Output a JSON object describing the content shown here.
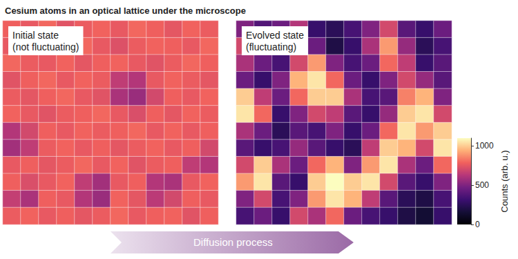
{
  "title": "Cesium atoms in an optical lattice under the microscope",
  "arrow_label": "Diffusion process",
  "colorbar": {
    "label": "Counts (arb. u.)",
    "range": [
      0,
      1100
    ],
    "ticks": [
      0,
      500,
      1000
    ]
  },
  "chart_data": [
    {
      "type": "heatmap",
      "annotation": "Initial state\n(not fluctuating)",
      "grid": true,
      "tick_labels": false,
      "cells": [
        [
          780,
          760,
          800,
          740,
          770,
          790,
          760,
          800,
          780,
          750,
          790,
          770
        ],
        [
          760,
          790,
          740,
          780,
          800,
          760,
          730,
          770,
          790,
          780,
          760,
          800
        ],
        [
          800,
          770,
          760,
          790,
          750,
          780,
          790,
          760,
          740,
          770,
          800,
          780
        ],
        [
          740,
          780,
          800,
          760,
          790,
          770,
          650,
          620,
          760,
          790,
          770,
          750
        ],
        [
          770,
          750,
          780,
          800,
          760,
          740,
          600,
          560,
          700,
          780,
          760,
          790
        ],
        [
          790,
          760,
          740,
          770,
          780,
          800,
          760,
          720,
          780,
          750,
          790,
          770
        ],
        [
          620,
          700,
          780,
          760,
          790,
          770,
          780,
          800,
          760,
          790,
          760,
          780
        ],
        [
          580,
          650,
          770,
          790,
          760,
          780,
          750,
          770,
          790,
          760,
          780,
          700
        ],
        [
          760,
          780,
          750,
          770,
          800,
          760,
          790,
          740,
          770,
          780,
          650,
          620
        ],
        [
          780,
          720,
          760,
          790,
          650,
          580,
          760,
          780,
          620,
          600,
          760,
          790
        ],
        [
          660,
          600,
          780,
          760,
          620,
          560,
          790,
          750,
          640,
          700,
          780,
          760
        ],
        [
          770,
          790,
          760,
          780,
          750,
          770,
          800,
          760,
          780,
          790,
          740,
          780
        ]
      ]
    },
    {
      "type": "heatmap",
      "annotation": "Evolved state\n(fluctuating)",
      "grid": true,
      "tick_labels": false,
      "cells": [
        [
          500,
          380,
          450,
          620,
          300,
          250,
          350,
          500,
          700,
          400,
          300,
          450
        ],
        [
          700,
          550,
          400,
          800,
          450,
          200,
          300,
          600,
          900,
          550,
          250,
          350
        ],
        [
          600,
          450,
          350,
          700,
          900,
          500,
          350,
          450,
          800,
          650,
          300,
          400
        ],
        [
          450,
          300,
          500,
          950,
          1050,
          800,
          450,
          300,
          500,
          700,
          550,
          400
        ],
        [
          1000,
          650,
          450,
          800,
          1000,
          1000,
          600,
          350,
          400,
          850,
          950,
          500
        ],
        [
          1050,
          800,
          300,
          500,
          700,
          650,
          400,
          300,
          550,
          1000,
          1050,
          700
        ],
        [
          600,
          450,
          250,
          400,
          350,
          500,
          300,
          450,
          800,
          1050,
          900,
          1000
        ],
        [
          400,
          300,
          350,
          550,
          400,
          300,
          250,
          650,
          1000,
          950,
          700,
          1050
        ],
        [
          700,
          1000,
          600,
          450,
          800,
          950,
          500,
          900,
          1050,
          600,
          450,
          800
        ],
        [
          900,
          1050,
          400,
          300,
          1000,
          1100,
          1000,
          1050,
          700,
          400,
          300,
          500
        ],
        [
          500,
          700,
          350,
          500,
          900,
          1050,
          950,
          650,
          400,
          250,
          200,
          350
        ],
        [
          350,
          450,
          300,
          700,
          600,
          800,
          450,
          350,
          300,
          200,
          150,
          300
        ]
      ]
    }
  ]
}
